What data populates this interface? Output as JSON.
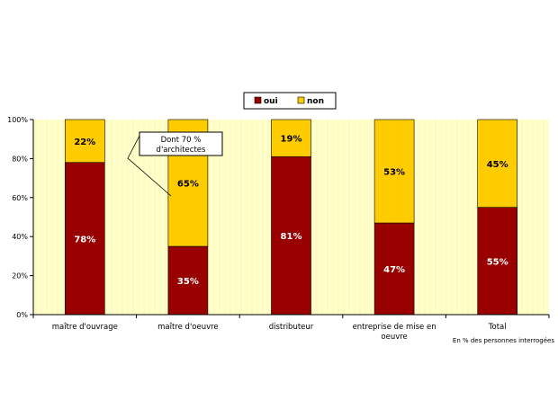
{
  "colors": {
    "oui": "#990000",
    "non": "#ffcc00",
    "plot_bg": "#ffffcc",
    "label_oui": "#ffffff",
    "label_non": "#000000"
  },
  "legend": {
    "placement": "top-center"
  },
  "source_note": "En % des personnes interrogées",
  "callout": {
    "line1": "Dont 70 %",
    "line2": "d'architectes"
  },
  "chart_data": {
    "type": "bar",
    "stacked": true,
    "categories": [
      [
        "maître d'ouvrage"
      ],
      [
        "maître d'oeuvre"
      ],
      [
        "distributeur"
      ],
      [
        "entreprise de mise en",
        "oeuvre"
      ],
      [
        "Total"
      ]
    ],
    "series": [
      {
        "name": "oui",
        "values": [
          78,
          35,
          81,
          47,
          55
        ]
      },
      {
        "name": "non",
        "values": [
          22,
          65,
          19,
          53,
          45
        ]
      }
    ],
    "data_labels": {
      "oui": [
        "78%",
        "35%",
        "81%",
        "47%",
        "55%"
      ],
      "non": [
        "22%",
        "65%",
        "19%",
        "53%",
        "45%"
      ]
    },
    "yticks": [
      "0%",
      "20%",
      "40%",
      "60%",
      "80%",
      "100%"
    ],
    "ylim": [
      0,
      100
    ],
    "grid": false
  }
}
